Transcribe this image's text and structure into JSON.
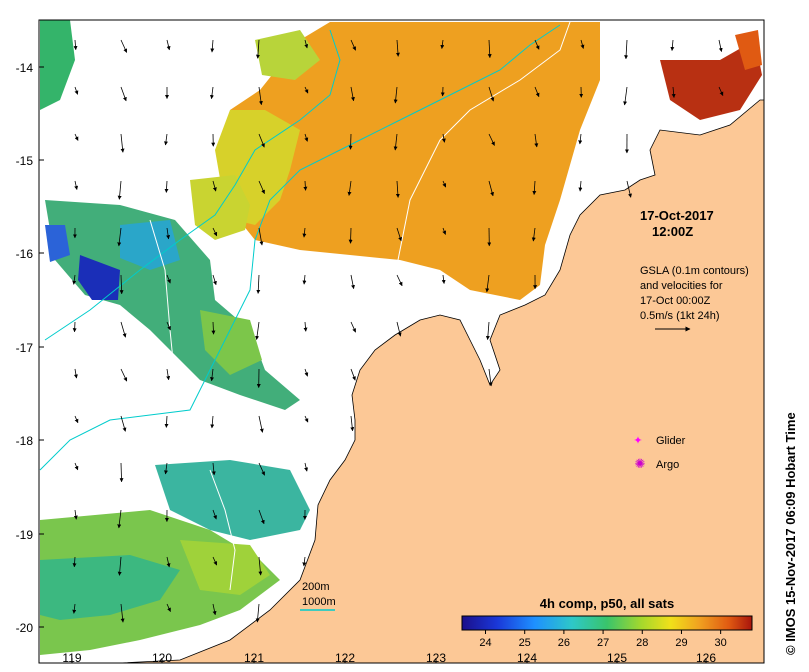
{
  "map": {
    "x_ticks": [
      "119",
      "120",
      "121",
      "122",
      "123",
      "124",
      "125",
      "126"
    ],
    "y_ticks": [
      "-14",
      "-15",
      "-16",
      "-17",
      "-18",
      "-19",
      "-20"
    ],
    "date_label": "17-Oct-2017",
    "time_label": "12:00Z",
    "gsla_lines": [
      "GSLA (0.1m contours)",
      "and velocities for",
      "17-Oct 00:00Z",
      "0.5m/s (1kt 24h)"
    ],
    "legend": {
      "glider_label": "Glider",
      "argo_label": "Argo",
      "glider_color": "#ff00ff",
      "argo_color": "#cc00cc"
    },
    "bathy": {
      "label_200": "200m",
      "label_1000": "1000m",
      "color": "#00cccc"
    },
    "colorbar": {
      "title": "4h comp, p50, all sats",
      "ticks": [
        "24",
        "25",
        "26",
        "27",
        "28",
        "29",
        "30"
      ],
      "range": [
        23.4,
        30.8
      ]
    },
    "credit": "© IMOS 15-Nov-2017 06:09 Hobart Time",
    "land_color": "#fcc896"
  }
}
